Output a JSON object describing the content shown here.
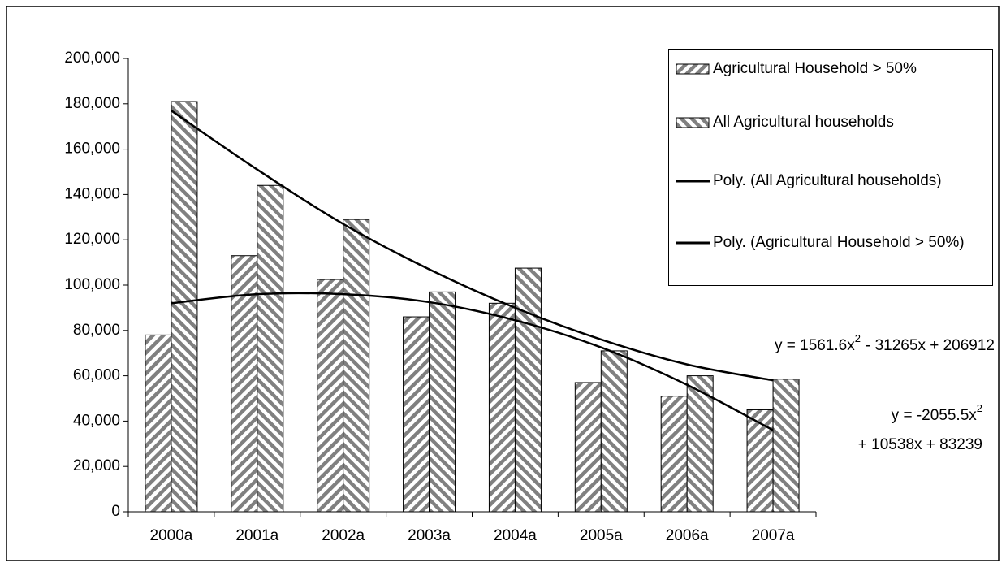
{
  "chart_data": {
    "type": "bar",
    "categories": [
      "2000a",
      "2001a",
      "2002a",
      "2003a",
      "2004a",
      "2005a",
      "2006a",
      "2007a"
    ],
    "series": [
      {
        "name": "Agricultural Household > 50%",
        "color": "#808080",
        "hatch": "forward",
        "values": [
          78000,
          113000,
          102500,
          86000,
          92000,
          57000,
          51000,
          45000
        ]
      },
      {
        "name": "All Agricultural households",
        "color": "#808080",
        "hatch": "backward",
        "values": [
          181000,
          144000,
          129000,
          97000,
          107500,
          71000,
          60000,
          58500
        ]
      }
    ],
    "trendlines": [
      {
        "name": "Poly. (All Agricultural households)",
        "color": "#000000",
        "values": [
          177000,
          151000,
          127000,
          107000,
          90000,
          76000,
          65000,
          58000
        ]
      },
      {
        "name": "Poly. (Agricultural Household > 50%)",
        "color": "#000000",
        "values": [
          92000,
          96000,
          96000,
          92500,
          84500,
          72500,
          56000,
          36000
        ]
      }
    ],
    "annotations": [
      {
        "text": "y = 1561.6x",
        "sup": "2",
        "rest": "- 31265x + 206912"
      },
      {
        "text": "y = -2055.5x",
        "sup": "2",
        "rest": "+ 10538x + 83239"
      }
    ],
    "ylim": [
      0,
      200000
    ],
    "yticks": [
      0,
      {
        "value": 20000,
        "label": "20,000"
      },
      {
        "value": 40000,
        "label": "40,000"
      },
      {
        "value": 60000,
        "label": "60,000"
      },
      {
        "value": 80000,
        "label": "80,000"
      },
      {
        "value": 100000,
        "label": "100,000"
      },
      {
        "value": 120000,
        "label": "120,000"
      },
      {
        "value": 140000,
        "label": "140,000"
      },
      {
        "value": 160000,
        "label": "160,000"
      },
      {
        "value": 180000,
        "label": "180,000"
      },
      {
        "value": 200000,
        "label": "200,000"
      }
    ],
    "grid": false
  }
}
